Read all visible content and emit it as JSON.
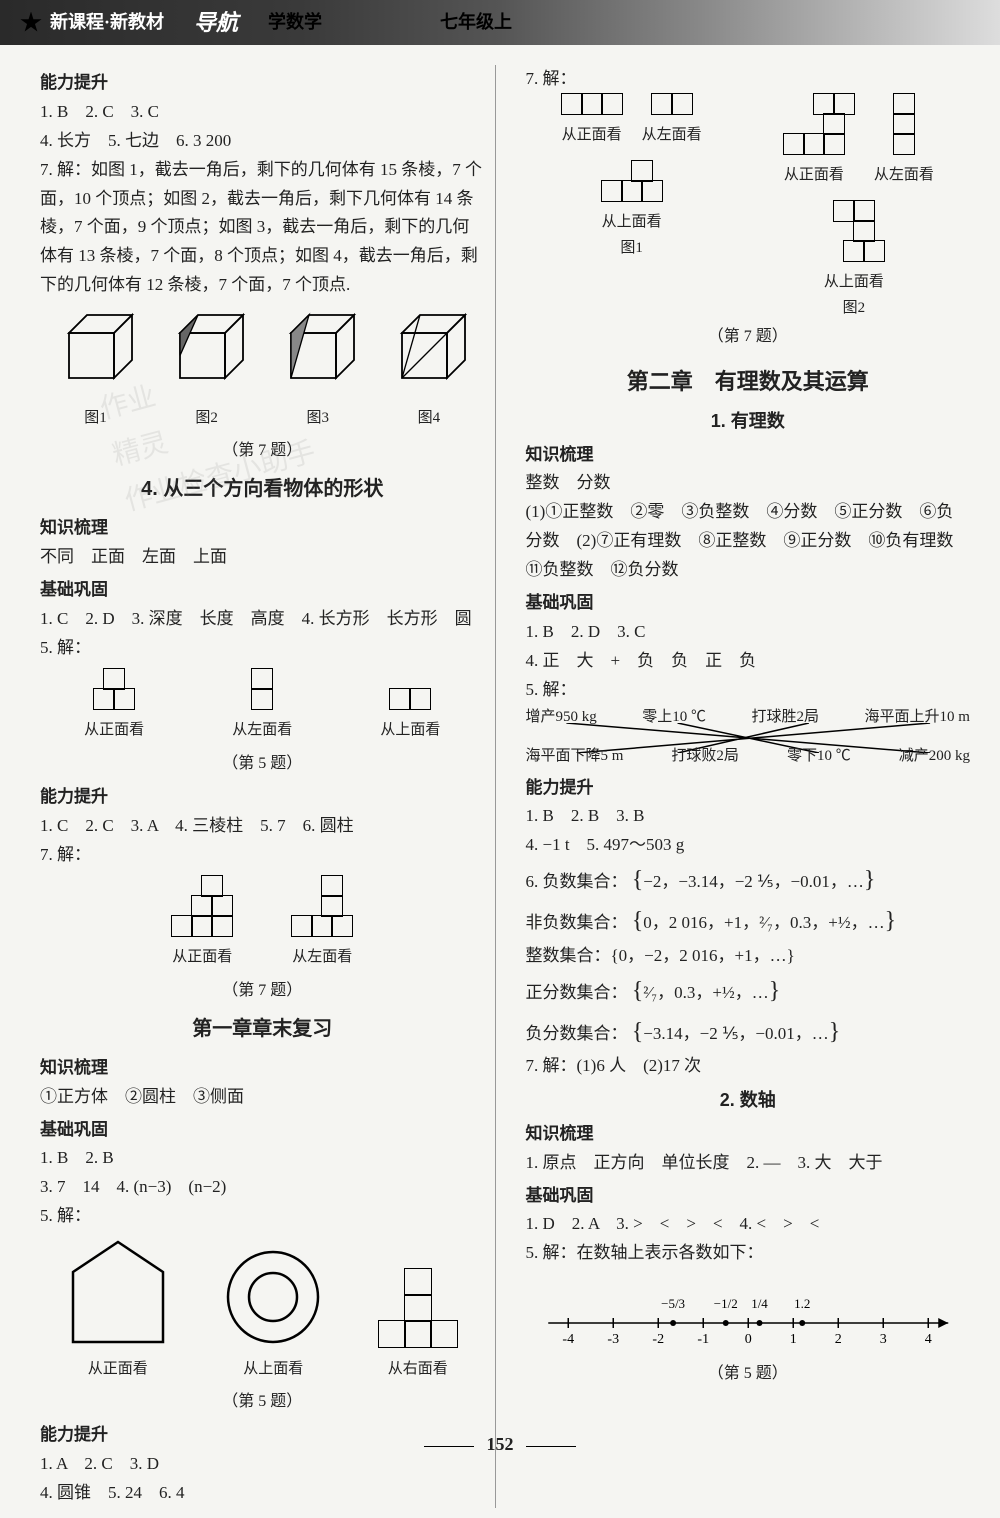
{
  "header": {
    "title_left": "新课程·新教材",
    "script": "导航",
    "subject": "学数学",
    "grade": "七年级上"
  },
  "page_number": "152",
  "left": {
    "s1_title": "能力提升",
    "s1_line1": "1. B　2. C　3. C",
    "s1_line2": "4. 长方　5. 七边　6. 3 200",
    "s1_q7": "7. 解：如图 1，截去一角后，剩下的几何体有 15 条棱，7 个面，10 个顶点；如图 2，截去一角后，剩下几何体有 14 条棱，7 个面，9 个顶点；如图 3，截去一角后，剩下的几何体有 13 条棱，7 个面，8 个顶点；如图 4，截去一角后，剩下的几何体有 12 条棱，7 个面，7 个顶点.",
    "cubes": [
      "图1",
      "图2",
      "图3",
      "图4"
    ],
    "s1_caption": "（第 7 题）",
    "sec4_title": "4. 从三个方向看物体的形状",
    "zs_title": "知识梳理",
    "zs_line": "不同　正面　左面　上面",
    "jc_title": "基础巩固",
    "jc_line1": "1. C　2. D　3. 深度　长度　高度　4. 长方形　长方形　圆",
    "jc_q5": "5. 解：",
    "view_labels": [
      "从正面看",
      "从左面看",
      "从上面看"
    ],
    "jc_caption": "（第 5 题）",
    "nl2_title": "能力提升",
    "nl2_line": "1. C　2. C　3. A　4. 三棱柱　5. 7　6. 圆柱",
    "nl2_q7": "7. 解：",
    "nl2_views": [
      "从正面看",
      "从左面看"
    ],
    "nl2_caption": "（第 7 题）",
    "ch1_review": "第一章章末复习",
    "zs2_title": "知识梳理",
    "zs2_line": "①正方体　②圆柱　③侧面",
    "jc2_title": "基础巩固",
    "jc2_line1": "1. B　2. B",
    "jc2_line2": "3. 7　14　4. (n−3)　(n−2)",
    "jc2_q5": "5. 解：",
    "jc2_views": [
      "从正面看",
      "从上面看",
      "从右面看"
    ],
    "jc2_caption": "（第 5 题）",
    "nl3_title": "能力提升",
    "nl3_line1": "1. A　2. C　3. D",
    "nl3_line2": "4. 圆锥　5. 24　6. 4"
  },
  "right": {
    "q7": "7. 解：",
    "q7_views1": [
      "从正面看",
      "从左面看"
    ],
    "q7_views2": [
      "从正面看",
      "从左面看"
    ],
    "q7_views3": [
      "从上面看",
      "从上面看"
    ],
    "q7_figcap": [
      "图1",
      "图2"
    ],
    "q7_caption": "（第 7 题）",
    "ch2_title": "第二章　有理数及其运算",
    "sec1_title": "1. 有理数",
    "zs_title": "知识梳理",
    "zs_line1": "整数　分数",
    "zs_line2": "(1)①正整数　②零　③负整数　④分数　⑤正分数　⑥负分数　(2)⑦正有理数　⑧正整数　⑨正分数　⑩负有理数　⑪负整数　⑫负分数",
    "jc_title": "基础巩固",
    "jc_line1": "1. B　2. D　3. C",
    "jc_line2": "4. 正　大　+　负　负　正　负",
    "jc_q5": "5. 解：",
    "cross_top": [
      "增产950 kg",
      "零上10 ℃",
      "打球胜2局",
      "海平面上升10 m"
    ],
    "cross_bottom": [
      "海平面下降5 m",
      "打球败2局",
      "零下10 ℃",
      "减产200 kg"
    ],
    "nl_title": "能力提升",
    "nl_line1": "1. B　2. B　3. B",
    "nl_line2": "4. −1 t　5. 497～503 g",
    "nl_q6_label": "6. 负数集合：",
    "nl_q6_set": "−2，−3.14，−2 ⅕，−0.01，…",
    "nl_nonNeg_label": "非负数集合：",
    "nl_nonNeg_set": "0，2 016，+1，²⁄₇，0.3，+½，…",
    "nl_int_label": "整数集合：",
    "nl_int_set": "{0，−2，2 016，+1，…}",
    "nl_posFrac_label": "正分数集合：",
    "nl_posFrac_set": "²⁄₇，0.3，+½，…",
    "nl_negFrac_label": "负分数集合：",
    "nl_negFrac_set": "−3.14，−2 ⅕，−0.01，…",
    "nl_q7": "7. 解：(1)6 人　(2)17 次",
    "sec2_title": "2. 数轴",
    "zs2_title": "知识梳理",
    "zs2_line": "1. 原点　正方向　单位长度　2. —　3. 大　大于",
    "jc2_title": "基础巩固",
    "jc2_line1": "1. D　2. A　3. >　<　>　<　4. <　>　<",
    "jc2_q5": "5. 解：在数轴上表示各数如下：",
    "numline": {
      "ticks": [
        "-4",
        "-3",
        "-2",
        "-1",
        "0",
        "1",
        "2",
        "3",
        "4"
      ],
      "points": [
        {
          "label": "−5/3",
          "x": -1.67
        },
        {
          "label": "−1/2",
          "x": -0.5
        },
        {
          "label": "1/4",
          "x": 0.25
        },
        {
          "label": "1.2",
          "x": 1.2
        }
      ]
    },
    "jc2_caption": "（第 5 题）"
  }
}
